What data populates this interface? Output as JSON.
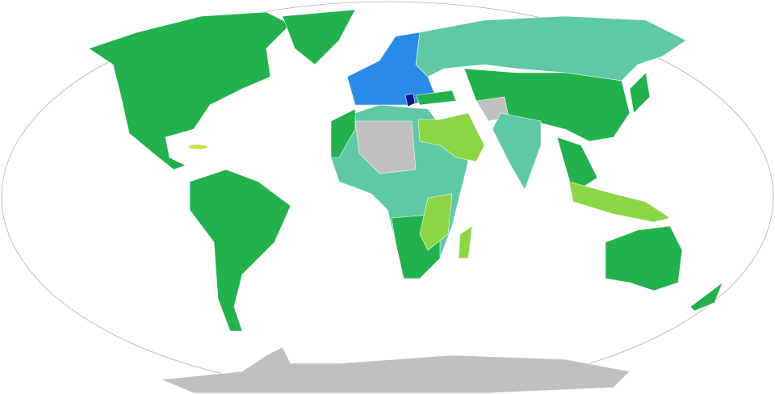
{
  "map": {
    "projection": "robinson",
    "colors": {
      "ocean": "#ffffff",
      "outline": "#b0b0b0",
      "home_country": "#0a1a80",
      "schengen_eu": "#2a8be6",
      "visa_free": "#22b14c",
      "evisa_or_on_arrival": "#5fc8a5",
      "visa_on_arrival": "#8bd645",
      "evisa": "#c8e04a",
      "visa_required": "#c0c0c0"
    }
  }
}
